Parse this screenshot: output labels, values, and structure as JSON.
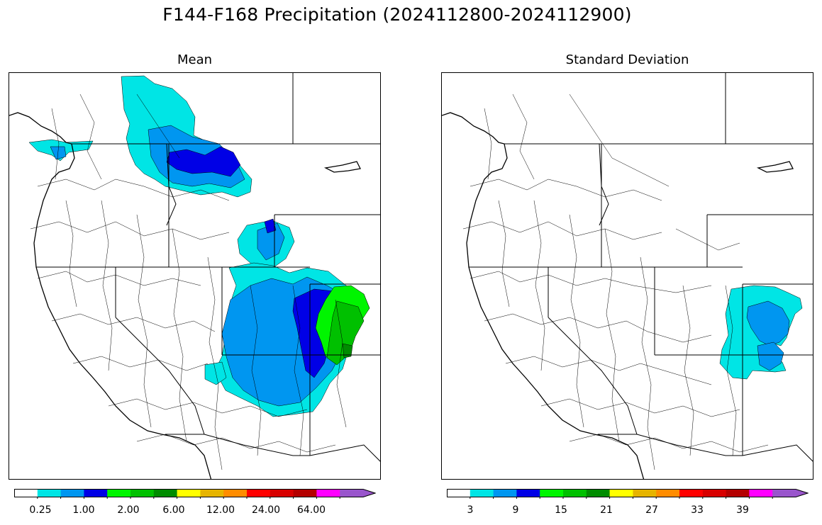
{
  "title": "F144-F168 Precipitation (2024112800-2024112900)",
  "panels": [
    {
      "id": "mean",
      "title": "Mean",
      "colorbar": {
        "colors": [
          "#ffffff",
          "#00e5e5",
          "#0096f0",
          "#0000e6",
          "#00f500",
          "#00c000",
          "#008c00",
          "#ffff00",
          "#e6b400",
          "#ff8c00",
          "#ff0000",
          "#d80000",
          "#b40000",
          "#ff00ff",
          "#9955cc"
        ],
        "tick_labels": [
          "0.25",
          "1.00",
          "2.00",
          "6.00",
          "12.00",
          "24.00",
          "64.00"
        ],
        "extend": "max"
      }
    },
    {
      "id": "std",
      "title": "Standard Deviation",
      "colorbar": {
        "colors": [
          "#ffffff",
          "#00e5e5",
          "#0096f0",
          "#0000e6",
          "#00f500",
          "#00c000",
          "#008c00",
          "#ffff00",
          "#e6b400",
          "#ff8c00",
          "#ff0000",
          "#d80000",
          "#b40000",
          "#ff00ff",
          "#9955cc"
        ],
        "tick_labels": [
          "3",
          "9",
          "15",
          "21",
          "27",
          "33",
          "39"
        ],
        "extend": "max"
      }
    }
  ]
}
